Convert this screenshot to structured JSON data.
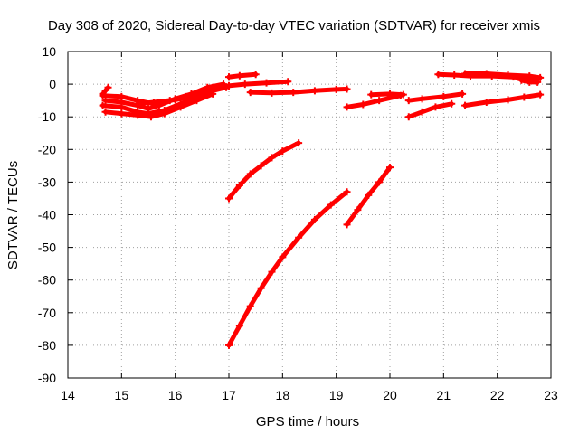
{
  "chart_data": {
    "type": "scatter",
    "title": "Day 308 of 2020, Sidereal Day-to-day VTEC variation (SDTVAR) for receiver xmis",
    "xlabel": "GPS time / hours",
    "ylabel": "SDTVAR / TECUs",
    "xlim": [
      14,
      23
    ],
    "ylim": [
      -90,
      10
    ],
    "xticks": [
      "14",
      "15",
      "16",
      "17",
      "18",
      "19",
      "20",
      "21",
      "22",
      "23"
    ],
    "yticks": [
      "10",
      "0",
      "-10",
      "-20",
      "-30",
      "-40",
      "-50",
      "-60",
      "-70",
      "-80",
      "-90"
    ],
    "grid": true,
    "marker_color": "#ff0000",
    "series": [
      {
        "values": [
          [
            14.65,
            -3.0
          ],
          [
            14.75,
            -1.0
          ]
        ]
      },
      {
        "values": [
          [
            14.65,
            -3.5
          ],
          [
            15.0,
            -3.8
          ],
          [
            15.3,
            -5.0
          ],
          [
            15.6,
            -6.0
          ],
          [
            15.9,
            -5.0
          ],
          [
            16.2,
            -3.8
          ],
          [
            16.5,
            -2.5
          ],
          [
            16.7,
            -1.0
          ],
          [
            17.0,
            -0.5
          ]
        ]
      },
      {
        "values": [
          [
            14.7,
            -5.0
          ],
          [
            15.0,
            -5.5
          ],
          [
            15.3,
            -6.5
          ],
          [
            15.5,
            -7.5
          ],
          [
            15.7,
            -6.5
          ],
          [
            16.0,
            -4.5
          ],
          [
            16.3,
            -3.0
          ],
          [
            16.6,
            -1.0
          ],
          [
            16.9,
            0.0
          ]
        ]
      },
      {
        "values": [
          [
            14.65,
            -6.5
          ],
          [
            15.0,
            -7.0
          ],
          [
            15.3,
            -8.5
          ],
          [
            15.5,
            -9.0
          ],
          [
            15.8,
            -8.0
          ],
          [
            16.1,
            -6.0
          ],
          [
            16.4,
            -4.0
          ],
          [
            16.7,
            -2.0
          ],
          [
            16.95,
            -1.0
          ]
        ]
      },
      {
        "values": [
          [
            14.7,
            -8.5
          ],
          [
            15.0,
            -9.0
          ],
          [
            15.3,
            -9.5
          ],
          [
            15.55,
            -10.0
          ],
          [
            15.8,
            -9.0
          ],
          [
            16.1,
            -7.0
          ],
          [
            16.4,
            -5.0
          ],
          [
            16.7,
            -3.0
          ]
        ]
      },
      {
        "values": [
          [
            15.3,
            -6.0
          ],
          [
            15.6,
            -5.5
          ],
          [
            16.0,
            -4.8
          ],
          [
            16.4,
            -3.5
          ]
        ]
      },
      {
        "values": [
          [
            17.0,
            2.2
          ],
          [
            17.2,
            2.6
          ],
          [
            17.5,
            3.0
          ]
        ]
      },
      {
        "values": [
          [
            17.0,
            -0.5
          ],
          [
            17.3,
            0.0
          ],
          [
            17.7,
            0.4
          ],
          [
            18.1,
            0.8
          ]
        ]
      },
      {
        "values": [
          [
            17.4,
            -2.5
          ],
          [
            17.8,
            -2.7
          ],
          [
            18.2,
            -2.5
          ],
          [
            18.6,
            -2.0
          ],
          [
            19.0,
            -1.6
          ],
          [
            19.2,
            -1.5
          ]
        ]
      },
      {
        "values": [
          [
            17.0,
            -35.0
          ],
          [
            17.2,
            -31.0
          ],
          [
            17.4,
            -27.5
          ],
          [
            17.6,
            -25.0
          ],
          [
            17.8,
            -22.5
          ],
          [
            18.0,
            -20.5
          ],
          [
            18.3,
            -18.0
          ]
        ]
      },
      {
        "values": [
          [
            17.0,
            -80.0
          ],
          [
            17.2,
            -74.0
          ],
          [
            17.4,
            -68.0
          ],
          [
            17.6,
            -62.5
          ],
          [
            17.8,
            -57.5
          ],
          [
            18.0,
            -53.0
          ],
          [
            18.3,
            -47.0
          ],
          [
            18.6,
            -41.5
          ],
          [
            18.9,
            -37.0
          ],
          [
            19.2,
            -33.0
          ]
        ]
      },
      {
        "values": [
          [
            19.2,
            -43.0
          ],
          [
            19.4,
            -38.5
          ],
          [
            19.6,
            -34.0
          ],
          [
            19.8,
            -30.0
          ],
          [
            20.0,
            -25.5
          ]
        ]
      },
      {
        "values": [
          [
            19.2,
            -7.0
          ],
          [
            19.5,
            -6.2
          ],
          [
            19.8,
            -5.0
          ],
          [
            20.2,
            -3.5
          ]
        ]
      },
      {
        "values": [
          [
            19.65,
            -3.2
          ],
          [
            20.0,
            -3.0
          ],
          [
            20.25,
            -3.2
          ]
        ]
      },
      {
        "values": [
          [
            20.35,
            -5.0
          ],
          [
            20.6,
            -4.5
          ],
          [
            21.0,
            -3.8
          ],
          [
            21.35,
            -3.0
          ]
        ]
      },
      {
        "values": [
          [
            20.35,
            -10.0
          ],
          [
            20.6,
            -8.5
          ],
          [
            20.85,
            -7.0
          ],
          [
            21.15,
            -6.0
          ]
        ]
      },
      {
        "values": [
          [
            20.9,
            3.0
          ],
          [
            21.2,
            2.8
          ],
          [
            21.5,
            2.5
          ],
          [
            21.9,
            2.5
          ],
          [
            22.3,
            2.2
          ],
          [
            22.75,
            1.6
          ]
        ]
      },
      {
        "values": [
          [
            21.4,
            3.2
          ],
          [
            21.8,
            3.2
          ],
          [
            22.2,
            2.8
          ],
          [
            22.6,
            2.5
          ],
          [
            22.8,
            2.0
          ]
        ]
      },
      {
        "values": [
          [
            22.45,
            1.2
          ],
          [
            22.6,
            0.6
          ],
          [
            22.75,
            0.6
          ]
        ]
      },
      {
        "values": [
          [
            21.4,
            -6.5
          ],
          [
            21.8,
            -5.5
          ],
          [
            22.2,
            -4.8
          ],
          [
            22.5,
            -4.0
          ],
          [
            22.8,
            -3.2
          ]
        ]
      }
    ]
  }
}
